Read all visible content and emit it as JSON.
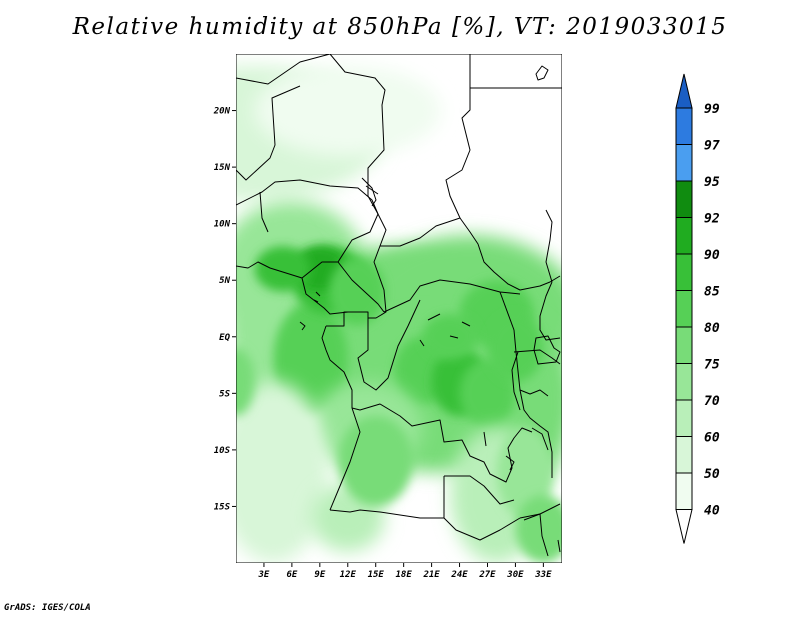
{
  "title": "Relative humidity at 850hPa [%], VT: 2019033015",
  "footer": "GrADS: IGES/COLA",
  "colors": {
    "c40": "#f0fcf0",
    "c50": "#d8f6d8",
    "c60": "#b9efb9",
    "c70": "#98e698",
    "c75": "#78dc78",
    "c80": "#56d056",
    "c85": "#38c038",
    "c90": "#20ac20",
    "c92": "#108c10",
    "c95": "#4a9ef0",
    "c97": "#2d7be0",
    "c99": "#1a5ec4",
    "border": "#000000"
  },
  "chart_data": {
    "type": "heatmap",
    "variable": "Relative humidity",
    "level": "850hPa",
    "unit": "%",
    "valid_time": "2019033015",
    "lon_range": [
      0,
      35
    ],
    "lat_range": [
      -20,
      25
    ],
    "x_tick_labels": [
      "3E",
      "6E",
      "9E",
      "12E",
      "15E",
      "18E",
      "21E",
      "24E",
      "27E",
      "30E",
      "33E"
    ],
    "y_tick_labels": [
      "20N",
      "15N",
      "10N",
      "5N",
      "EQ",
      "5S",
      "10S",
      "15S"
    ],
    "colorbar_levels": [
      "40",
      "50",
      "60",
      "70",
      "75",
      "80",
      "85",
      "90",
      "92",
      "95",
      "97",
      "99"
    ]
  }
}
